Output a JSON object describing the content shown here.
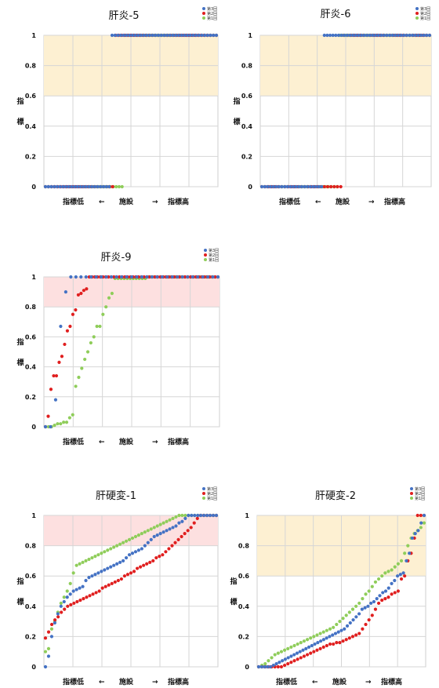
{
  "chart_data": [
    {
      "id": "c1",
      "type": "scatter",
      "title": "肝炎-5",
      "ylim": [
        0,
        1
      ],
      "yticks": [
        "0",
        "0.2",
        "0.4",
        "0.6",
        "0.8",
        "1"
      ],
      "ylabel": [
        "指",
        "標"
      ],
      "xlabel": {
        "low": "指標低",
        "arrow_left": "←",
        "mid": "施設",
        "arrow_right": "→",
        "high": "指標高"
      },
      "band": {
        "from": 0.6,
        "to": 1.0,
        "color": "#fdf0d2"
      },
      "grid": true,
      "legend": [
        "第3回",
        "第2回",
        "第1回"
      ],
      "colors": [
        "#4472c4",
        "#e01f1f",
        "#8fcd5a"
      ],
      "series": [
        {
          "name": "第3回",
          "values": [
            0,
            0,
            0,
            0,
            0,
            0,
            0,
            0,
            0,
            0,
            0,
            0,
            0,
            0,
            0,
            0,
            0,
            0,
            0,
            0,
            0,
            0,
            0,
            1,
            1,
            1,
            1,
            1,
            1,
            1,
            1,
            1,
            1,
            1,
            1,
            1,
            1,
            1,
            1,
            1,
            1,
            1,
            1,
            1,
            1,
            1,
            1,
            1,
            1,
            1,
            1,
            1,
            1,
            1,
            1,
            1,
            1,
            1,
            1,
            1
          ]
        },
        {
          "name": "第2回",
          "values": [
            0,
            0,
            0,
            0,
            0,
            0,
            0,
            0,
            0,
            0,
            0,
            0,
            0,
            0,
            0,
            0,
            0,
            0,
            0,
            0,
            0,
            0,
            0,
            1,
            1,
            1,
            1,
            1,
            1,
            1,
            1,
            1,
            1,
            1,
            1,
            1,
            1,
            1,
            1,
            1,
            1,
            1,
            1,
            1,
            1,
            1,
            1,
            1,
            1,
            1,
            1,
            1,
            1,
            1,
            1,
            1,
            1
          ]
        },
        {
          "name": "第1回",
          "values": [
            0,
            0,
            0,
            0,
            0,
            0,
            0,
            0,
            0,
            0,
            0,
            0,
            0,
            0,
            0,
            0,
            0,
            0,
            0,
            0,
            0,
            0,
            0,
            0,
            0,
            0,
            0,
            1,
            1,
            1,
            1,
            1,
            1,
            1,
            1,
            1,
            1,
            1,
            1,
            1,
            1,
            1,
            1,
            1,
            1,
            1,
            1,
            1,
            1,
            1,
            1,
            1,
            1,
            1,
            1,
            1,
            1,
            1,
            1
          ]
        }
      ]
    },
    {
      "id": "c2",
      "type": "scatter",
      "title": "肝炎-6",
      "ylim": [
        0,
        1
      ],
      "yticks": [
        "0",
        "0.2",
        "0.4",
        "0.6",
        "0.8",
        "1"
      ],
      "ylabel": [
        "指",
        "標"
      ],
      "xlabel": {
        "low": "指標低",
        "arrow_left": "←",
        "mid": "施設",
        "arrow_right": "→",
        "high": "指標高"
      },
      "band": {
        "from": 0.6,
        "to": 1.0,
        "color": "#fdf0d2"
      },
      "grid": true,
      "legend": [
        "第3回",
        "第2回",
        "第1回"
      ],
      "colors": [
        "#4472c4",
        "#e01f1f",
        "#8fcd5a"
      ],
      "series": [
        {
          "name": "第3回",
          "values": [
            0,
            0,
            0,
            0,
            0,
            0,
            0,
            0,
            0,
            0,
            0,
            0,
            0,
            0,
            0,
            0,
            0,
            0,
            0,
            0,
            0,
            0,
            1,
            1,
            1,
            1,
            1,
            1,
            1,
            1,
            1,
            1,
            1,
            1,
            1,
            1,
            1,
            1,
            1,
            1,
            1,
            1,
            1,
            1,
            1,
            1,
            1,
            1,
            1,
            1,
            1,
            1,
            1,
            1,
            1,
            1,
            1,
            1,
            1,
            1
          ]
        },
        {
          "name": "第2回",
          "values": [
            0,
            0,
            0,
            0,
            0,
            0,
            0,
            0,
            0,
            0,
            0,
            0,
            0,
            0,
            0,
            0,
            0,
            0,
            0,
            0,
            0,
            0,
            0,
            0,
            0,
            1,
            1,
            1,
            1,
            1,
            1,
            1,
            1,
            1,
            1,
            1,
            1,
            1,
            1,
            1,
            1,
            1,
            1,
            1,
            1,
            1,
            1,
            1,
            1,
            1,
            1,
            1
          ]
        },
        {
          "name": "第1回",
          "values": [
            0,
            0,
            0,
            0,
            0,
            0,
            0,
            0,
            0,
            0,
            0,
            0,
            0,
            0,
            0,
            0,
            0,
            0,
            0,
            0,
            0,
            0,
            0,
            0,
            0,
            0,
            0,
            1,
            1,
            1,
            1,
            1,
            1,
            1,
            1,
            1,
            1,
            1,
            1,
            1,
            1,
            1,
            1,
            1,
            1,
            1,
            1,
            1,
            1,
            1,
            1,
            1,
            1,
            1,
            1,
            1,
            1,
            1,
            1
          ]
        }
      ]
    },
    {
      "id": "c3",
      "type": "scatter",
      "title": "肝炎-9",
      "ylim": [
        0,
        1
      ],
      "yticks": [
        "0",
        "0.2",
        "0.4",
        "0.6",
        "0.8",
        "1"
      ],
      "ylabel": [
        "指",
        "標"
      ],
      "xlabel": {
        "low": "指標低",
        "arrow_left": "←",
        "mid": "施設",
        "arrow_right": "→",
        "high": "指標高"
      },
      "band": {
        "from": 0.8,
        "to": 1.0,
        "color": "#fde0e0"
      },
      "grid": true,
      "legend": [
        "第3回",
        "第2回",
        "第1回"
      ],
      "colors": [
        "#4472c4",
        "#e01f1f",
        "#8fcd5a"
      ],
      "series": [
        {
          "name": "第3回",
          "values": [
            0,
            0,
            0.18,
            0.67,
            0.9,
            1,
            1,
            1,
            1,
            1,
            1,
            1,
            1,
            1,
            1,
            1,
            1,
            1,
            1,
            1,
            1,
            1,
            1,
            1,
            1,
            1,
            1,
            1,
            1,
            1,
            1,
            1,
            1,
            1,
            1
          ]
        },
        {
          "name": "第2回",
          "values": [
            0,
            0.07,
            0.25,
            0.34,
            0.34,
            0.43,
            0.47,
            0.55,
            0.64,
            0.67,
            0.75,
            0.78,
            0.88,
            0.89,
            0.91,
            0.92,
            1,
            1,
            1,
            1,
            1,
            1,
            1,
            1,
            1,
            1,
            1,
            1,
            1,
            1,
            1,
            1,
            1,
            1,
            1,
            1,
            1,
            1,
            1,
            1,
            1,
            1,
            1,
            1,
            1,
            1,
            1,
            1,
            1,
            1,
            1,
            1,
            1,
            1,
            1,
            1,
            1,
            1,
            1,
            1,
            1,
            1,
            1,
            1
          ]
        },
        {
          "name": "第1回",
          "values": [
            0,
            0,
            0,
            0.01,
            0.02,
            0.02,
            0.03,
            0.03,
            0.06,
            0.08,
            0.27,
            0.33,
            0.39,
            0.45,
            0.5,
            0.56,
            0.6,
            0.67,
            0.67,
            0.75,
            0.8,
            0.86,
            0.89,
            0.99,
            0.99,
            0.99,
            0.99,
            0.99,
            0.99,
            0.99,
            0.99,
            0.99,
            0.99,
            0.99,
            1,
            1,
            1,
            1,
            1,
            1,
            1,
            1,
            1,
            1,
            1,
            1,
            1,
            1,
            1,
            1,
            1,
            1,
            1,
            1,
            1,
            1,
            1,
            1
          ]
        }
      ]
    },
    {
      "id": "c4",
      "type": "scatter",
      "title": "肝硬変-1",
      "ylim": [
        0,
        1
      ],
      "yticks": [
        "0",
        "0.2",
        "0.4",
        "0.6",
        "0.8",
        "1"
      ],
      "ylabel": [
        "指",
        "標"
      ],
      "xlabel": {
        "low": "指標低",
        "arrow_left": "←",
        "mid": "施設",
        "arrow_right": "→",
        "high": "指標高"
      },
      "band": {
        "from": 0.8,
        "to": 1.0,
        "color": "#fde0e0"
      },
      "grid": true,
      "legend": [
        "第3回",
        "第2回",
        "第1回"
      ],
      "colors": [
        "#4472c4",
        "#e01f1f",
        "#8fcd5a"
      ],
      "series": [
        {
          "name": "第3回",
          "values": [
            0,
            0.07,
            0.2,
            0.29,
            0.35,
            0.4,
            0.43,
            0.46,
            0.48,
            0.5,
            0.51,
            0.52,
            0.53,
            0.57,
            0.59,
            0.6,
            0.61,
            0.62,
            0.63,
            0.64,
            0.65,
            0.66,
            0.67,
            0.68,
            0.69,
            0.7,
            0.72,
            0.74,
            0.75,
            0.76,
            0.77,
            0.78,
            0.8,
            0.82,
            0.84,
            0.86,
            0.87,
            0.88,
            0.89,
            0.9,
            0.91,
            0.92,
            0.93,
            0.95,
            0.96,
            0.98,
            1,
            1,
            1,
            1,
            1,
            1,
            1,
            1,
            1,
            1
          ]
        },
        {
          "name": "第2回",
          "values": [
            0.19,
            0.23,
            0.28,
            0.31,
            0.33,
            0.36,
            0.38,
            0.4,
            0.41,
            0.42,
            0.43,
            0.44,
            0.45,
            0.46,
            0.47,
            0.48,
            0.49,
            0.5,
            0.52,
            0.53,
            0.54,
            0.55,
            0.56,
            0.57,
            0.58,
            0.6,
            0.61,
            0.62,
            0.63,
            0.65,
            0.66,
            0.67,
            0.68,
            0.69,
            0.7,
            0.72,
            0.73,
            0.74,
            0.76,
            0.78,
            0.8,
            0.82,
            0.84,
            0.86,
            0.88,
            0.9,
            0.92,
            0.95,
            0.98,
            1,
            1,
            1,
            1,
            1,
            1
          ]
        },
        {
          "name": "第1回",
          "values": [
            0.1,
            0.12,
            0.25,
            0.3,
            0.36,
            0.42,
            0.46,
            0.5,
            0.55,
            0.62,
            0.67,
            0.68,
            0.69,
            0.7,
            0.71,
            0.72,
            0.73,
            0.74,
            0.75,
            0.76,
            0.77,
            0.78,
            0.79,
            0.8,
            0.81,
            0.82,
            0.83,
            0.84,
            0.85,
            0.86,
            0.87,
            0.88,
            0.89,
            0.9,
            0.91,
            0.92,
            0.93,
            0.94,
            0.95,
            0.96,
            0.97,
            0.98,
            0.99,
            1,
            1,
            1,
            1,
            1,
            1,
            1,
            1,
            1,
            1,
            1,
            1,
            1
          ]
        }
      ]
    },
    {
      "id": "c5",
      "type": "scatter",
      "title": "肝硬変-2",
      "ylim": [
        0,
        1
      ],
      "yticks": [
        "0",
        "0.2",
        "0.4",
        "0.6",
        "0.8",
        "1"
      ],
      "ylabel": [
        "指",
        "標"
      ],
      "xlabel": {
        "low": "指標低",
        "arrow_left": "←",
        "mid": "施設",
        "arrow_right": "→",
        "high": "指標高"
      },
      "band": {
        "from": 0.6,
        "to": 1.0,
        "color": "#fdf0d2"
      },
      "grid": true,
      "legend": [
        "第3回",
        "第2回",
        "第1回"
      ],
      "colors": [
        "#4472c4",
        "#e01f1f",
        "#8fcd5a"
      ],
      "series": [
        {
          "name": "第3回",
          "values": [
            0,
            0,
            0,
            0,
            0,
            0.01,
            0.02,
            0.03,
            0.04,
            0.05,
            0.06,
            0.07,
            0.08,
            0.09,
            0.1,
            0.11,
            0.12,
            0.13,
            0.14,
            0.15,
            0.16,
            0.17,
            0.18,
            0.19,
            0.2,
            0.21,
            0.22,
            0.23,
            0.24,
            0.25,
            0.27,
            0.29,
            0.31,
            0.33,
            0.35,
            0.38,
            0.39,
            0.4,
            0.42,
            0.43,
            0.45,
            0.47,
            0.49,
            0.5,
            0.52,
            0.55,
            0.57,
            0.6,
            0.61,
            0.62,
            0.7,
            0.75,
            0.85,
            0.88,
            0.9,
            0.95,
            1
          ]
        },
        {
          "name": "第2回",
          "values": [
            0,
            0,
            0,
            0,
            0,
            0,
            0,
            0,
            0.01,
            0.02,
            0.03,
            0.04,
            0.05,
            0.06,
            0.07,
            0.08,
            0.09,
            0.1,
            0.11,
            0.12,
            0.13,
            0.14,
            0.15,
            0.15,
            0.16,
            0.16,
            0.17,
            0.18,
            0.19,
            0.2,
            0.21,
            0.22,
            0.25,
            0.28,
            0.31,
            0.34,
            0.38,
            0.42,
            0.44,
            0.45,
            0.46,
            0.48,
            0.49,
            0.5,
            0.58,
            0.6,
            0.7,
            0.75,
            0.85,
            1,
            1,
            1
          ]
        },
        {
          "name": "第1回",
          "values": [
            0,
            0.01,
            0.02,
            0.04,
            0.06,
            0.08,
            0.09,
            0.1,
            0.11,
            0.12,
            0.13,
            0.14,
            0.15,
            0.16,
            0.17,
            0.18,
            0.19,
            0.2,
            0.21,
            0.22,
            0.23,
            0.24,
            0.25,
            0.26,
            0.28,
            0.3,
            0.32,
            0.34,
            0.36,
            0.38,
            0.4,
            0.42,
            0.45,
            0.48,
            0.5,
            0.53,
            0.56,
            0.58,
            0.6,
            0.62,
            0.63,
            0.64,
            0.66,
            0.68,
            0.7,
            0.75,
            0.8,
            0.85,
            0.88,
            0.9,
            0.92,
            0.95
          ]
        }
      ]
    }
  ]
}
